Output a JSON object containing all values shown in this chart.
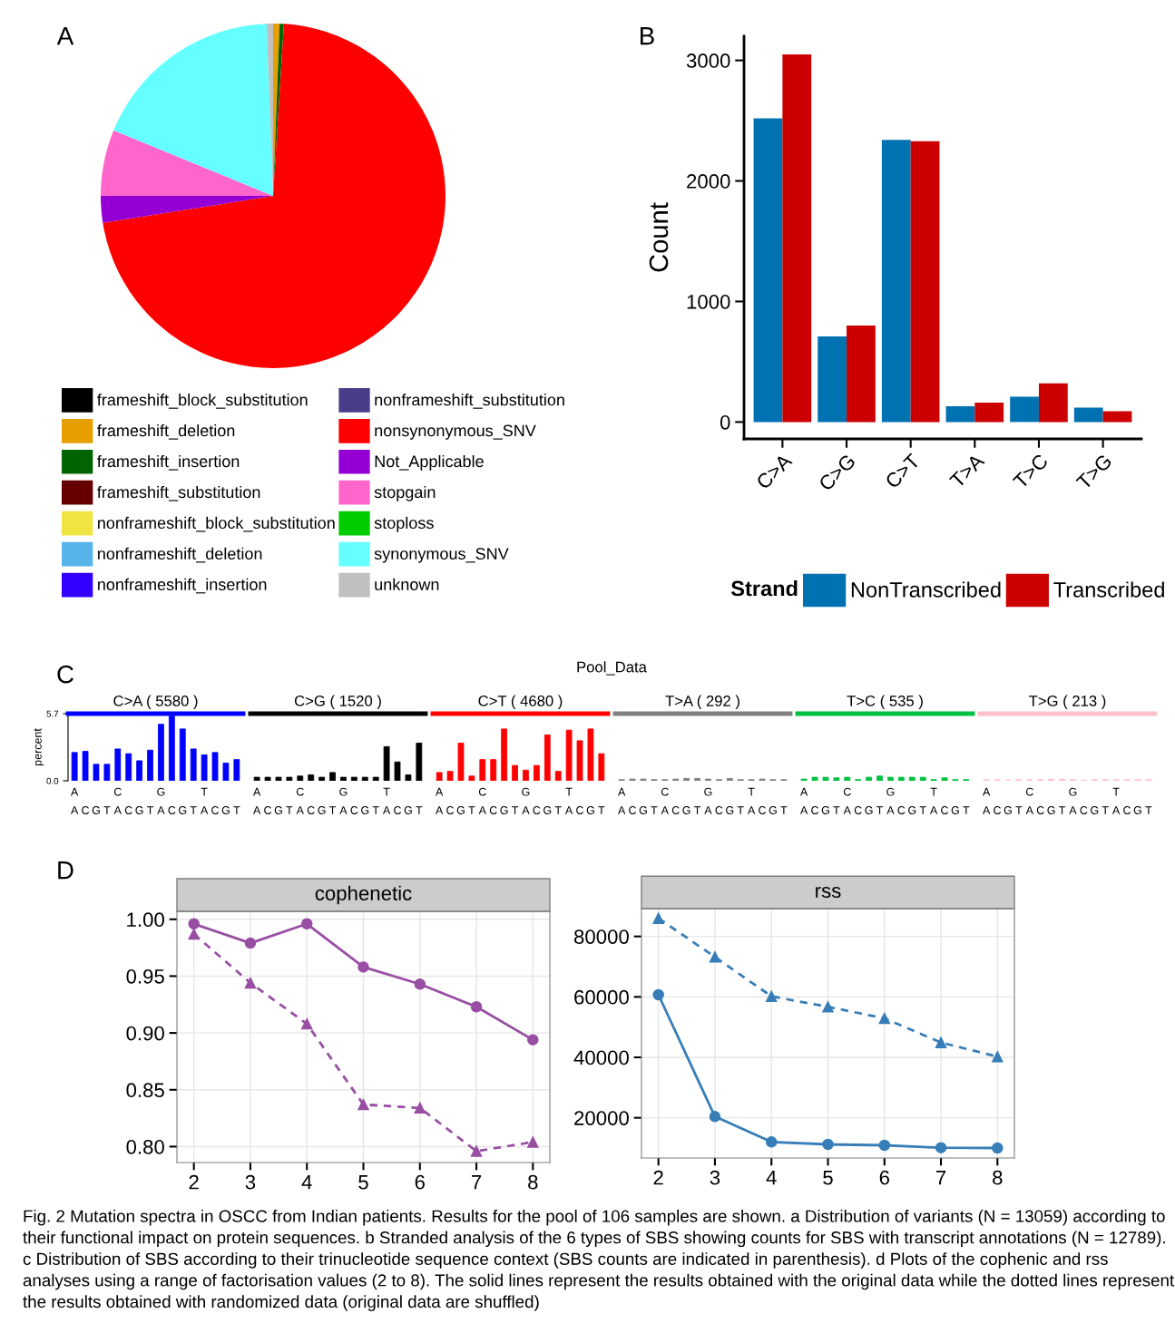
{
  "chart_data": [
    {
      "type": "pie",
      "title": "A",
      "legend": "bottom",
      "categories": [
        "frameshift_block_substitution",
        "frameshift_deletion",
        "frameshift_insertion",
        "frameshift_substitution",
        "nonframeshift_block_substitution",
        "nonframeshift_deletion",
        "nonframeshift_insertion",
        "nonframeshift_substitution",
        "nonsynonymous_SNV",
        "Not_Applicable",
        "stopgain",
        "stoploss",
        "synonymous_SNV",
        "unknown"
      ],
      "values": [
        0,
        0.6,
        0.4,
        0,
        0,
        0,
        0,
        0,
        71.5,
        2.5,
        6.2,
        0,
        18.2,
        0.6
      ],
      "colors": [
        "#000000",
        "#e69f00",
        "#006400",
        "#660000",
        "#f0e442",
        "#56b4e9",
        "#3300ff",
        "#483d8b",
        "#ff0000",
        "#9400d3",
        "#ff66cc",
        "#00cc00",
        "#66ffff",
        "#c0c0c0"
      ]
    },
    {
      "type": "bar",
      "title": "B",
      "ylabel": "Count",
      "legend": "bottom",
      "legend_title": "Strand",
      "categories": [
        "C>A",
        "C>G",
        "C>T",
        "T>A",
        "T>C",
        "T>G"
      ],
      "series": [
        {
          "name": "NonTranscribed",
          "color": "#0072b2",
          "values": [
            2520,
            710,
            2340,
            130,
            210,
            120
          ]
        },
        {
          "name": "Transcribed",
          "color": "#cc0000",
          "values": [
            3050,
            800,
            2330,
            160,
            320,
            90
          ]
        }
      ],
      "ylim": [
        -140,
        3200
      ],
      "yticks": [
        0,
        1000,
        2000,
        3000
      ]
    },
    {
      "type": "bar",
      "title": "C",
      "subtitle": "C>A ( 5580 )",
      "ylabel": "percent",
      "categories": [
        "A",
        "C",
        "G",
        "T",
        "A",
        "C",
        "G",
        "T",
        "A",
        "C",
        "G",
        "T",
        "A",
        "C",
        "G",
        "T"
      ],
      "series": [
        {
          "color": "#0000ff",
          "values": [
            2.4,
            2.5,
            1.4,
            1.4,
            2.7,
            2.3,
            1.7,
            2.6,
            4.8,
            5.5,
            4.4,
            2.7,
            2.2,
            2.4,
            1.5,
            1.8
          ]
        }
      ],
      "ylim": [
        0,
        5.7
      ],
      "yticks": [
        {
          "value": 0,
          "label": "0.0"
        },
        5.7
      ],
      "annotations": [
        "Pool_Data",
        "A",
        "C",
        "G",
        "T"
      ]
    },
    {
      "type": "bar",
      "subtitle": "C>G ( 1520 )",
      "tick_labels": "x",
      "categories": [
        "A",
        "C",
        "G",
        "T",
        "A",
        "C",
        "G",
        "T",
        "A",
        "C",
        "G",
        "T",
        "A",
        "C",
        "G",
        "T"
      ],
      "series": [
        {
          "color": "#000000",
          "values": [
            0.3,
            0.3,
            0.3,
            0.3,
            0.4,
            0.5,
            0.3,
            0.7,
            0.3,
            0.3,
            0.3,
            0.3,
            2.9,
            1.6,
            0.5,
            3.2
          ]
        }
      ],
      "ylim": [
        0,
        5.7
      ],
      "annotations": [
        "A",
        "C",
        "G",
        "T"
      ]
    },
    {
      "type": "bar",
      "subtitle": "C>T ( 4680 )",
      "tick_labels": "x",
      "categories": [
        "A",
        "C",
        "G",
        "T",
        "A",
        "C",
        "G",
        "T",
        "A",
        "C",
        "G",
        "T",
        "A",
        "C",
        "G",
        "T"
      ],
      "series": [
        {
          "color": "#ff0000",
          "values": [
            0.7,
            0.8,
            3.2,
            0.4,
            1.8,
            1.8,
            4.4,
            1.3,
            0.9,
            1.3,
            3.9,
            0.8,
            4.3,
            3.4,
            4.4,
            2.3
          ]
        }
      ],
      "ylim": [
        0,
        5.7
      ],
      "annotations": [
        "A",
        "C",
        "G",
        "T"
      ]
    },
    {
      "type": "bar",
      "subtitle": "T>A ( 292 )",
      "tick_labels": "x",
      "categories": [
        "A",
        "C",
        "G",
        "T",
        "A",
        "C",
        "G",
        "T",
        "A",
        "C",
        "G",
        "T",
        "A",
        "C",
        "G",
        "T"
      ],
      "series": [
        {
          "color": "#808080",
          "values": [
            0.1,
            0.15,
            0.15,
            0.1,
            0.1,
            0.15,
            0.2,
            0.2,
            0.15,
            0.1,
            0.2,
            0.1,
            0.1,
            0.15,
            0.1,
            0.1
          ]
        }
      ],
      "ylim": [
        0,
        5.7
      ],
      "annotations": [
        "A",
        "C",
        "G",
        "T"
      ]
    },
    {
      "type": "bar",
      "subtitle": "T>C ( 535 )",
      "tick_labels": "x",
      "categories": [
        "A",
        "C",
        "G",
        "T",
        "A",
        "C",
        "G",
        "T",
        "A",
        "C",
        "G",
        "T",
        "A",
        "C",
        "G",
        "T"
      ],
      "series": [
        {
          "color": "#00c040",
          "values": [
            0.15,
            0.3,
            0.3,
            0.25,
            0.3,
            0.1,
            0.3,
            0.4,
            0.3,
            0.3,
            0.3,
            0.3,
            0.1,
            0.25,
            0.1,
            0.1
          ]
        }
      ],
      "ylim": [
        0,
        5.7
      ],
      "annotations": [
        "A",
        "C",
        "G",
        "T"
      ]
    },
    {
      "type": "bar",
      "subtitle": "T>G ( 213 )",
      "tick_labels": "x",
      "categories": [
        "A",
        "C",
        "G",
        "T",
        "A",
        "C",
        "G",
        "T",
        "A",
        "C",
        "G",
        "T",
        "A",
        "C",
        "G",
        "T"
      ],
      "series": [
        {
          "color": "#ffc0cb",
          "values": [
            0.1,
            0.1,
            0.05,
            0.1,
            0.1,
            0.1,
            0.15,
            0.15,
            0.1,
            0.05,
            0.1,
            0.1,
            0.1,
            0.1,
            0.1,
            0.1
          ]
        }
      ],
      "ylim": [
        0,
        5.7
      ],
      "annotations": [
        "A",
        "C",
        "G",
        "T"
      ]
    },
    {
      "type": "line",
      "title": "D",
      "subtitle": "cophenetic",
      "grid": true,
      "x": [
        2,
        3,
        4,
        5,
        6,
        7,
        8
      ],
      "series": [
        {
          "color": "#984ea3",
          "marker": "circle",
          "line_style": "solid",
          "values": [
            0.996,
            0.979,
            0.996,
            0.958,
            0.943,
            0.923,
            0.894
          ]
        },
        {
          "color": "#984ea3",
          "marker": "triangle",
          "line_style": "dashed",
          "values": [
            0.987,
            0.944,
            0.908,
            0.837,
            0.834,
            0.796,
            0.804
          ]
        }
      ],
      "xlim": [
        1.7,
        8.3
      ],
      "xticks": [
        2,
        3,
        4,
        5,
        6,
        7,
        8
      ],
      "ylim": [
        0.786,
        1.007
      ],
      "yticks": [
        {
          "value": 0.8,
          "label": "0.80"
        },
        {
          "value": 0.85,
          "label": "0.85"
        },
        {
          "value": 0.9,
          "label": "0.90"
        },
        {
          "value": 0.95,
          "label": "0.95"
        },
        {
          "value": 1.0,
          "label": "1.00"
        }
      ]
    },
    {
      "type": "line",
      "subtitle": "rss",
      "grid": true,
      "x": [
        2,
        3,
        4,
        5,
        6,
        7,
        8
      ],
      "series": [
        {
          "color": "#377eb8",
          "marker": "circle",
          "line_style": "solid",
          "values": [
            60700,
            20400,
            12000,
            11200,
            10900,
            10100,
            10000
          ]
        },
        {
          "color": "#377eb8",
          "marker": "triangle",
          "line_style": "dashed",
          "values": [
            86000,
            73200,
            60200,
            56700,
            52900,
            44900,
            40200
          ]
        }
      ],
      "xlim": [
        1.7,
        8.3
      ],
      "xticks": [
        2,
        3,
        4,
        5,
        6,
        7,
        8
      ],
      "ylim": [
        6700,
        89200
      ],
      "yticks": [
        20000,
        40000,
        60000,
        80000
      ],
      "annotations": [
        "Fig. 2 Mutation spectra in OSCC from Indian patients. Results for the pool of 106 samples are shown. a Distribution of variants (N = 13059) according to their functional impact on protein sequences. b Stranded analysis of the 6 types of SBS showing counts for SBS with transcript annotations (N = 12789). c Distribution of SBS according to their trinucleotide sequence context (SBS counts are indicated in parenthesis). d Plots of the cophenic and rss analyses using a range of factorisation values (2 to 8). The solid lines represent the results obtained with the original data while the dotted lines represent the results obtained with randomized data (original data are shuffled)"
      ]
    }
  ]
}
